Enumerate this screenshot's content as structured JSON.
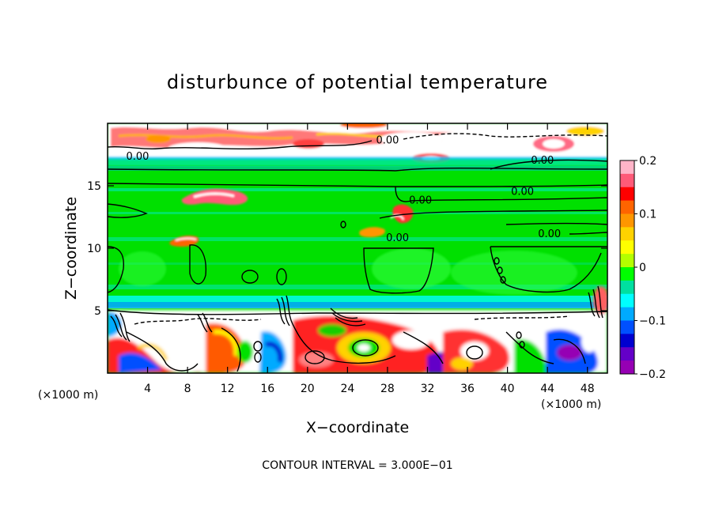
{
  "chart_data": {
    "type": "heatmap",
    "title": "disturbunce of potential temperature",
    "xlabel": "X−coordinate",
    "ylabel": "Z−coordinate",
    "x_unit_left": "(×1000 m)",
    "x_unit_right": "(×1000 m)",
    "xlim": [
      0,
      50
    ],
    "ylim": [
      0,
      20
    ],
    "x_ticks": [
      4,
      8,
      12,
      16,
      20,
      24,
      28,
      32,
      36,
      40,
      44,
      48
    ],
    "x_tick_labels": [
      "4",
      "8",
      "12",
      "16",
      "20",
      "24",
      "28",
      "32",
      "36",
      "40",
      "44",
      "48"
    ],
    "y_ticks": [
      5,
      10,
      15
    ],
    "y_tick_labels": [
      "5",
      "10",
      "15"
    ],
    "colorbar": {
      "range": [
        -0.2,
        0.2
      ],
      "ticks": [
        0.2,
        0.1,
        0,
        -0.1,
        -0.2
      ],
      "tick_labels": [
        "0.2",
        "0.1",
        "0",
        "−0.1",
        "−0.2"
      ],
      "colors": [
        "#ffb4c8",
        "#ff5a78",
        "#ff0000",
        "#ff6400",
        "#ff9600",
        "#ffd200",
        "#ffff00",
        "#b4ff00",
        "#00ff00",
        "#00e0a0",
        "#00ffff",
        "#00aaff",
        "#0050ff",
        "#0000d0",
        "#6400c8",
        "#9600b4"
      ]
    },
    "contour_labels": [
      {
        "text": "0.00",
        "x": 3,
        "y": 17.4
      },
      {
        "text": "0.00",
        "x": 28,
        "y": 18.7
      },
      {
        "text": "0.00",
        "x": 43.5,
        "y": 17.1
      },
      {
        "text": "0.00",
        "x": 41.5,
        "y": 14.6
      },
      {
        "text": "0.00",
        "x": 31.3,
        "y": 13.9
      },
      {
        "text": "0.00",
        "x": 29,
        "y": 10.9
      },
      {
        "text": "0.00",
        "x": 44.2,
        "y": 11.2
      }
    ],
    "footer": "CONTOUR INTERVAL = 3.000E−01"
  }
}
